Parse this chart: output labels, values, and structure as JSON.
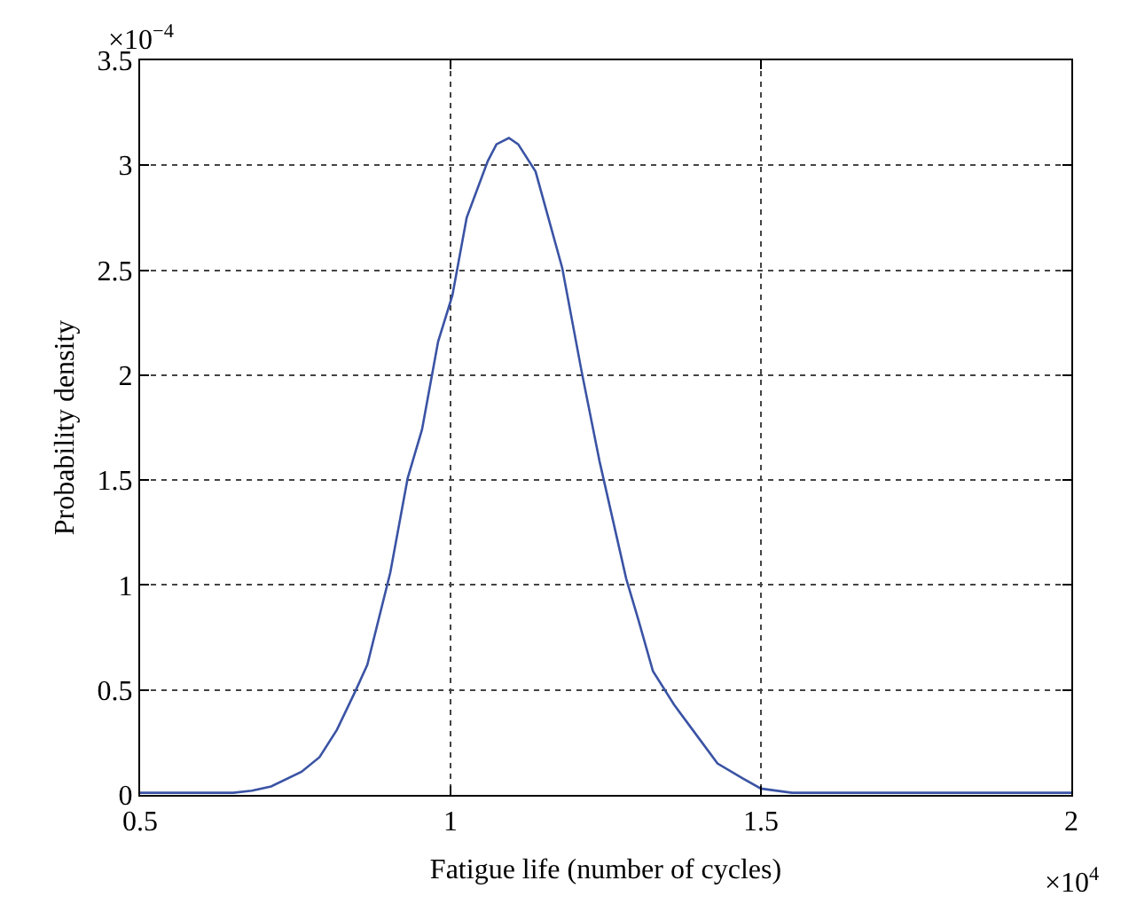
{
  "chart_data": {
    "type": "line",
    "xlabel": "Fatigue life (number of cycles)",
    "ylabel": "Probability density",
    "annotations": [
      "×10$^{4}$",
      "×10$^{−4}$"
    ],
    "series": [
      {
        "color": "#3a53a4",
        "x": [
          0.5,
          0.617,
          0.65,
          0.68,
          0.711,
          0.76,
          0.789,
          0.817,
          0.846,
          0.866,
          0.903,
          0.931,
          0.954,
          0.98,
          1.003,
          1.026,
          1.06,
          1.074,
          1.094,
          1.109,
          1.137,
          1.18,
          1.211,
          1.24,
          1.283,
          1.303,
          1.326,
          1.36,
          1.4,
          1.43,
          1.47,
          1.5,
          1.55,
          1.6,
          2.0
        ],
        "values": [
          0.01,
          0.01,
          0.01,
          0.02,
          0.04,
          0.11,
          0.18,
          0.31,
          0.49,
          0.62,
          1.06,
          1.51,
          1.74,
          2.16,
          2.38,
          2.75,
          3.02,
          3.1,
          3.13,
          3.1,
          2.97,
          2.51,
          2.02,
          1.59,
          1.03,
          0.83,
          0.59,
          0.43,
          0.27,
          0.15,
          0.08,
          0.03,
          0.01,
          0.01,
          0.01
        ]
      }
    ],
    "xlim": [
      0.5,
      2
    ],
    "xticks": [
      0.5,
      1,
      1.5,
      2
    ],
    "ylim": [
      0,
      3.5
    ],
    "yticks": [
      0,
      0.5,
      1,
      1.5,
      2,
      2.5,
      3,
      3.5
    ],
    "grid": true,
    "line_style": "solid"
  }
}
